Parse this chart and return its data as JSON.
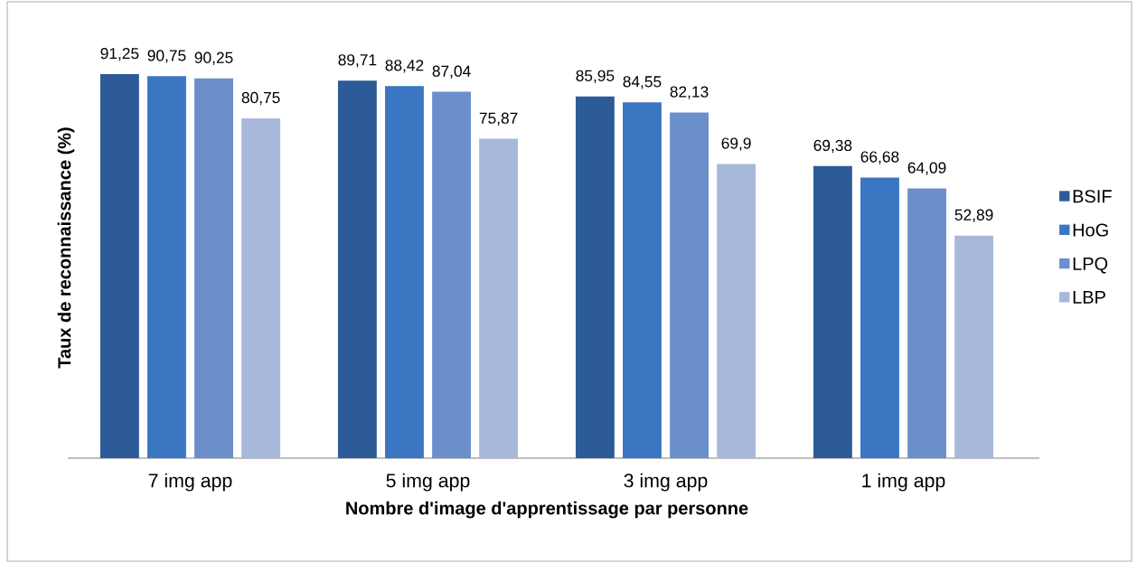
{
  "chart_data": {
    "type": "bar",
    "xlabel": "Nombre d'image d'apprentissage par personne",
    "ylabel": "Taux de reconnaissance (%)",
    "categories": [
      "7 img app",
      "5 img app",
      "3 img app",
      "1 img app"
    ],
    "legend": "right",
    "series": [
      {
        "name": "BSIF",
        "color": "#2c5b98",
        "values": [
          91.25,
          89.71,
          85.95,
          69.38
        ],
        "value_labels": [
          "91,25",
          "89,71",
          "85,95",
          "69,38"
        ]
      },
      {
        "name": "HoG",
        "color": "#3a76c2",
        "values": [
          90.75,
          88.42,
          84.55,
          66.68
        ],
        "value_labels": [
          "90,75",
          "88,42",
          "84,55",
          "66,68"
        ]
      },
      {
        "name": "LPQ",
        "color": "#6b8fcb",
        "values": [
          90.25,
          87.04,
          82.13,
          64.09
        ],
        "value_labels": [
          "90,25",
          "87,04",
          "82,13",
          "64,09"
        ]
      },
      {
        "name": "LBP",
        "color": "#a8b8db",
        "values": [
          80.75,
          75.87,
          69.9,
          52.89
        ],
        "value_labels": [
          "80,75",
          "75,87",
          "69,9",
          "52,89"
        ]
      }
    ]
  }
}
